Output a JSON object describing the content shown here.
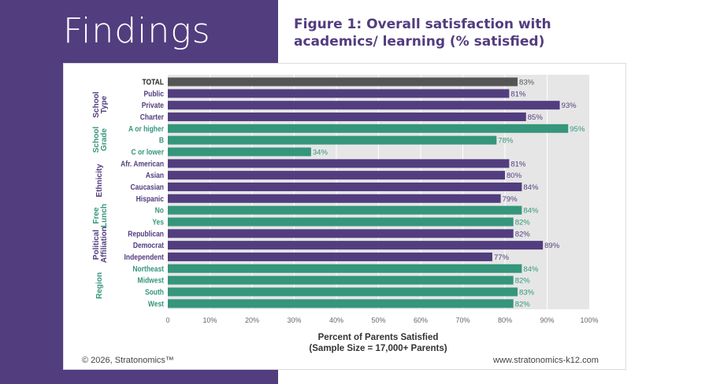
{
  "slide": {
    "heading": "Findings",
    "copyright": "© 2026, Stratonomics™",
    "website": "www.stratonomics-k12.com"
  },
  "chart_data": {
    "type": "bar",
    "orientation": "horizontal",
    "title": "Figure 1: Overall satisfaction with academics/ learning (% satisfied)",
    "xlabel": "Percent of Parents Satisfied",
    "xlabel2": "(Sample Size = 17,000+ Parents)",
    "xlim": [
      0,
      100
    ],
    "ticks": [
      "0",
      "10%",
      "20%",
      "30%",
      "40%",
      "50%",
      "60%",
      "70%",
      "80%",
      "90%",
      "100%"
    ],
    "grid": true,
    "colors": {
      "total": "#555555",
      "purple": "#523d7f",
      "teal": "#35967c",
      "plot_bg": "#e6e6e6"
    },
    "groups": [
      {
        "name": "",
        "color": "total",
        "items": [
          [
            "TOTAL",
            83
          ]
        ]
      },
      {
        "name": "School Type",
        "color": "purple",
        "items": [
          [
            "Public",
            81
          ],
          [
            "Private",
            93
          ],
          [
            "Charter",
            85
          ]
        ]
      },
      {
        "name": "School Grade",
        "color": "teal",
        "items": [
          [
            "A or higher",
            95
          ],
          [
            "B",
            78
          ],
          [
            "C or lower",
            34
          ]
        ]
      },
      {
        "name": "Ethnicity",
        "color": "purple",
        "items": [
          [
            "Afr. American",
            81
          ],
          [
            "Asian",
            80
          ],
          [
            "Caucasian",
            84
          ],
          [
            "Hispanic",
            79
          ]
        ]
      },
      {
        "name": "Free Lunch",
        "color": "teal",
        "items": [
          [
            "No",
            84
          ],
          [
            "Yes",
            82
          ]
        ]
      },
      {
        "name": "Political Affiliation",
        "color": "purple",
        "items": [
          [
            "Republican",
            82
          ],
          [
            "Democrat",
            89
          ],
          [
            "Independent",
            77
          ]
        ]
      },
      {
        "name": "Region",
        "color": "teal",
        "items": [
          [
            "Northeast",
            84
          ],
          [
            "Midwest",
            82
          ],
          [
            "South",
            83
          ],
          [
            "West",
            82
          ]
        ]
      }
    ]
  }
}
